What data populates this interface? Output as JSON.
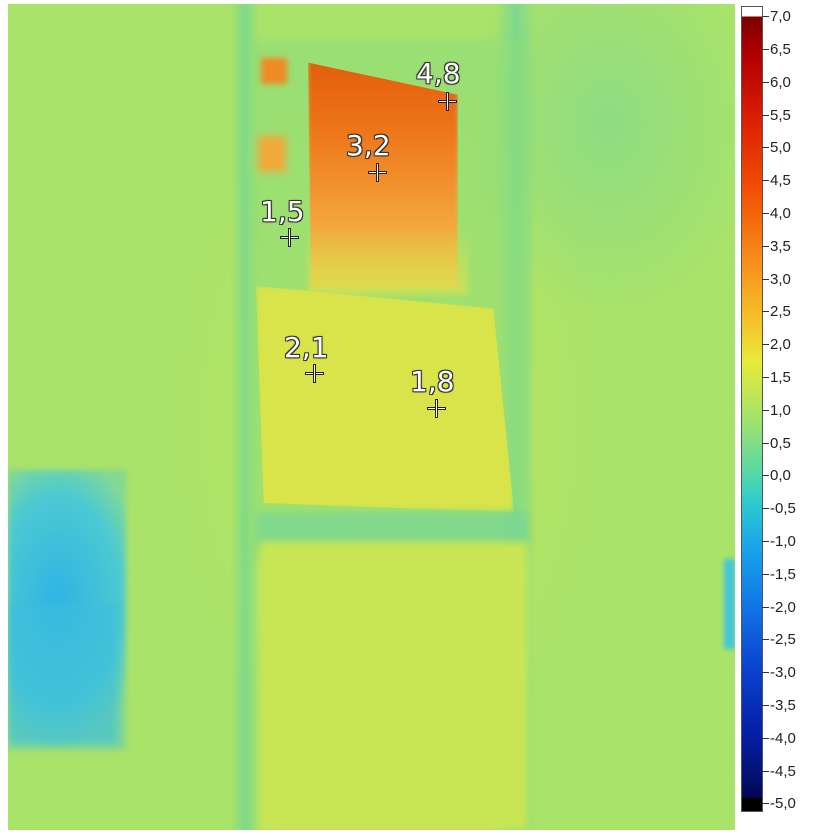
{
  "image": {
    "description_kind": "thermal camera image",
    "palette": {
      "background": "#a9e36a",
      "hot": "#ee6a10",
      "warm": "#f2a43a",
      "cool": "#4cc9d2",
      "cold": "#2fb4e4"
    }
  },
  "markers": [
    {
      "value": "4,8"
    },
    {
      "value": "3,2"
    },
    {
      "value": "1,5"
    },
    {
      "value": "2,1"
    },
    {
      "value": "1,8"
    }
  ],
  "scale": {
    "ticks": [
      "7,0",
      "6,5",
      "6,0",
      "5,5",
      "5,0",
      "4,5",
      "4,0",
      "3,5",
      "3,0",
      "2,5",
      "2,0",
      "1,5",
      "1,0",
      "0,5",
      "0,0",
      "-0,5",
      "-1,0",
      "-1,5",
      "-2,0",
      "-2,5",
      "-3,0",
      "-3,5",
      "-4,0",
      "-4,5",
      "-5,0"
    ],
    "min": -5.0,
    "max": 7.0
  }
}
